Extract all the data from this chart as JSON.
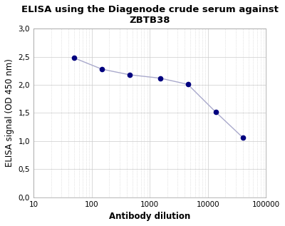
{
  "title_line1": "ELISA using the Diagenode crude serum against",
  "title_line2": "ZBTB38",
  "xlabel": "Antibody dilution",
  "ylabel": "ELISA signal (OD 450 nm)",
  "x_data": [
    50,
    150,
    450,
    1500,
    4500,
    13500,
    40000
  ],
  "y_data": [
    2.48,
    2.28,
    2.18,
    2.12,
    2.01,
    1.52,
    1.06
  ],
  "xlim": [
    10,
    100000
  ],
  "ylim": [
    0.0,
    3.0
  ],
  "yticks": [
    0.0,
    0.5,
    1.0,
    1.5,
    2.0,
    2.5,
    3.0
  ],
  "ytick_labels": [
    "0,0",
    "0,5",
    "1,0",
    "1,5",
    "2,0",
    "2,5",
    "3,0"
  ],
  "line_color": "#aaaacc",
  "marker_color": "#00007f",
  "marker_size": 5.5,
  "background_color": "#ffffff",
  "grid_color": "#cccccc",
  "title_fontsize": 9.5,
  "axis_label_fontsize": 8.5,
  "tick_fontsize": 7.5
}
